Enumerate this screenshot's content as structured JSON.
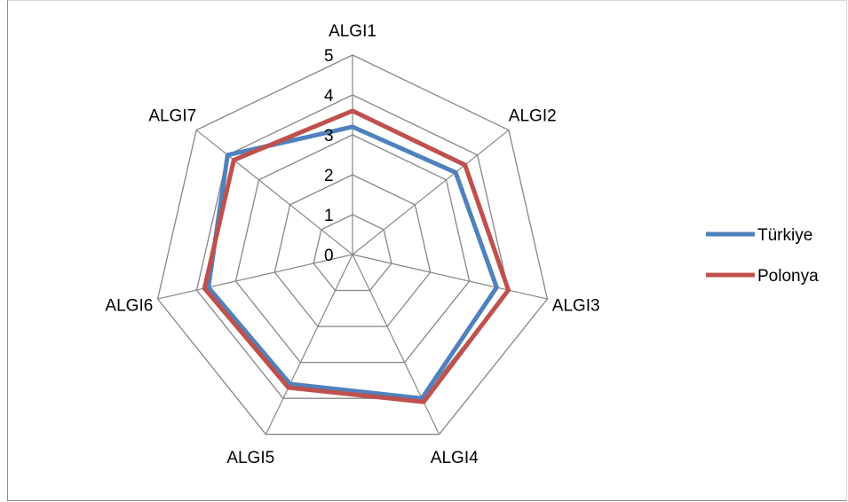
{
  "chart_data": {
    "type": "radar",
    "categories": [
      "ALGI1",
      "ALGI2",
      "ALGI3",
      "ALGI4",
      "ALGI5",
      "ALGI6",
      "ALGI7"
    ],
    "rlim": [
      0,
      5
    ],
    "ticks": [
      "0",
      "1",
      "2",
      "3",
      "4",
      "5"
    ],
    "series": [
      {
        "name": "Türkiye",
        "color": "#4F81BD",
        "values": [
          3.2,
          3.3,
          3.7,
          4.0,
          3.6,
          3.7,
          4.0
        ]
      },
      {
        "name": "Polonya",
        "color": "#C0504D",
        "values": [
          3.6,
          3.6,
          4.0,
          4.1,
          3.7,
          3.8,
          3.8
        ]
      }
    ],
    "legend_position": "right",
    "grid": true
  }
}
